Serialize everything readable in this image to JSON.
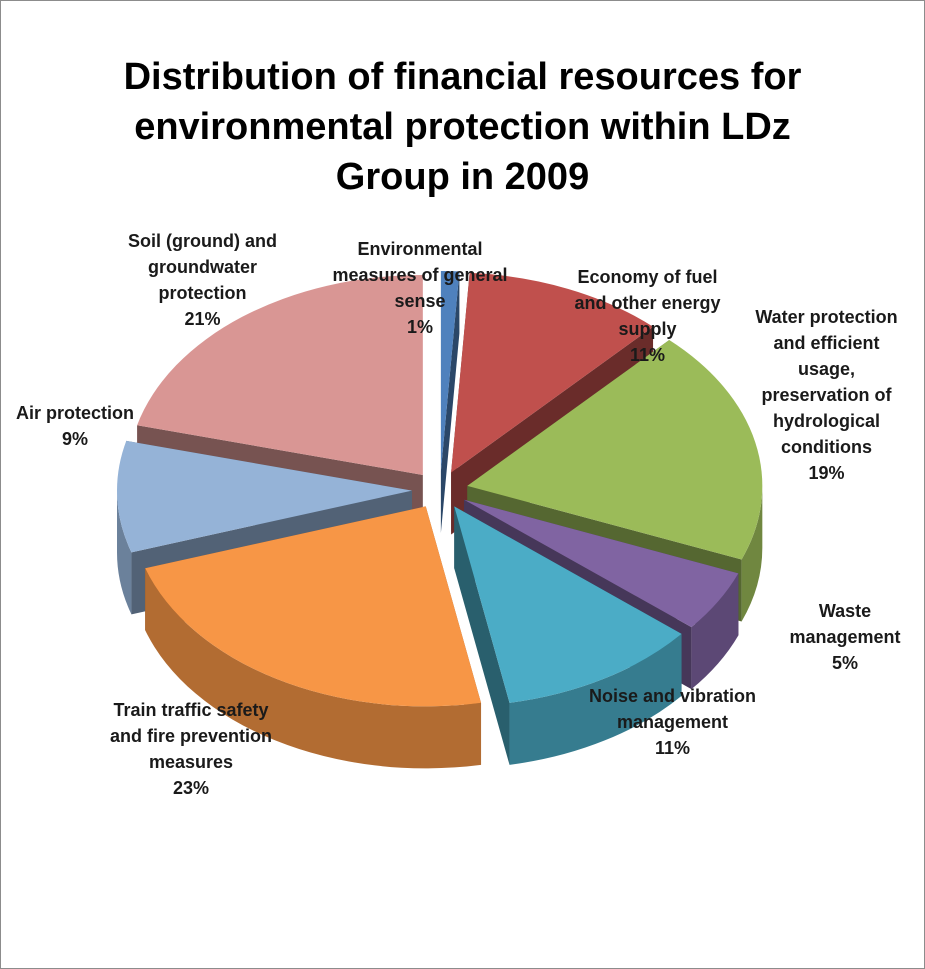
{
  "chart_data": {
    "type": "pie",
    "title": "Distribution of financial resources for environmental protection within LDz Group in 2009",
    "style": "3d-exploded",
    "legend": "none",
    "slices": [
      {
        "name": "Environmental measures of general sense",
        "value": 1,
        "value_label": "1%",
        "color": "#4f81bd"
      },
      {
        "name": "Economy of fuel and other energy supply",
        "value": 11,
        "value_label": "11%",
        "color": "#c0504d"
      },
      {
        "name": "Water protection and efficient usage, preservation of hydrological conditions",
        "value": 19,
        "value_label": "19%",
        "color": "#9bbb59"
      },
      {
        "name": "Waste management",
        "value": 5,
        "value_label": "5%",
        "color": "#8064a2"
      },
      {
        "name": "Noise and vibration management",
        "value": 11,
        "value_label": "11%",
        "color": "#4bacc6"
      },
      {
        "name": "Train traffic safety and fire prevention measures",
        "value": 23,
        "value_label": "23%",
        "color": "#f79646"
      },
      {
        "name": "Air protection",
        "value": 9,
        "value_label": "9%",
        "color": "#95b3d7"
      },
      {
        "name": "Soil (ground) and groundwater protection",
        "value": 21,
        "value_label": "21%",
        "color": "#d99694"
      }
    ]
  }
}
